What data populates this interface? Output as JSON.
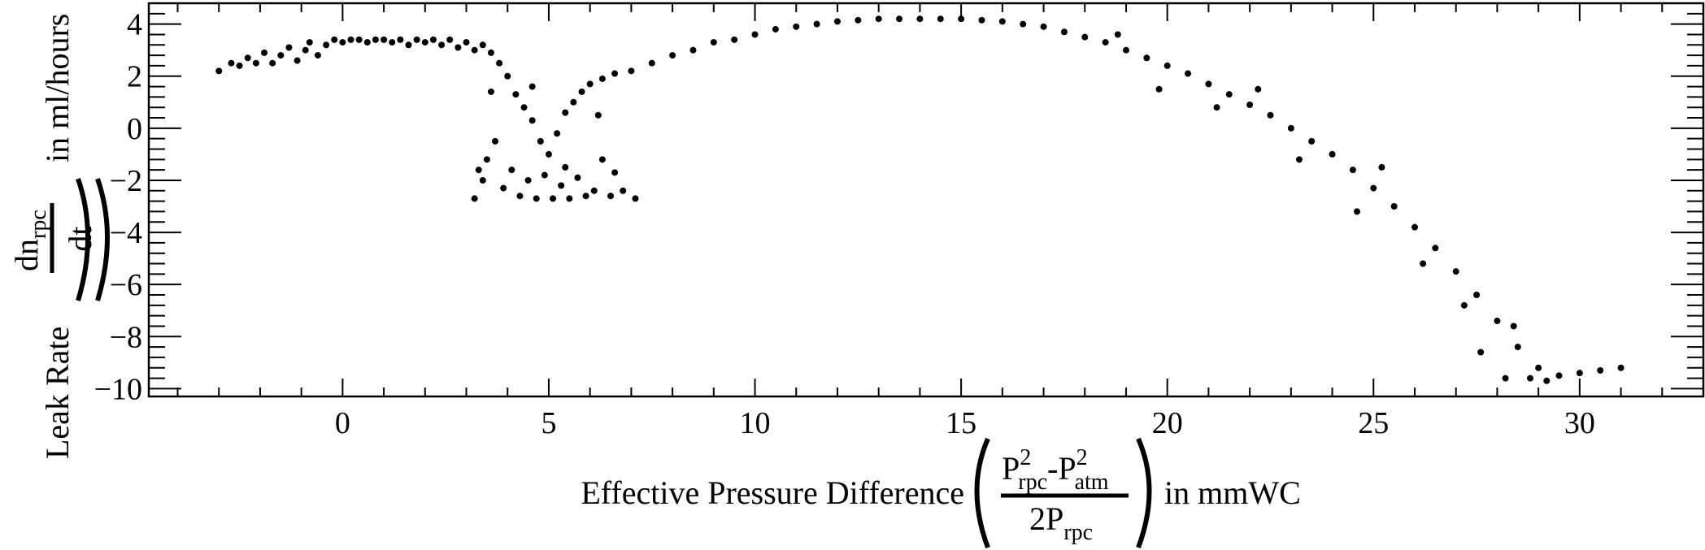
{
  "chart_data": {
    "type": "scatter",
    "title": "",
    "xlabel": {
      "prefix": "Effective Pressure Difference",
      "numerator": {
        "p1": "P",
        "p1_sup": "2",
        "p1_sub": "rpc",
        "minus": "-",
        "p2": "P",
        "p2_sup": "2",
        "p2_sub": "atm"
      },
      "denominator": {
        "coef": "2",
        "p": "P",
        "p_sub": "rpc"
      },
      "suffix": "in mmWC"
    },
    "ylabel": {
      "prefix": "Leak Rate",
      "numerator": {
        "d": "dn",
        "sub": "rpc"
      },
      "denominator": "dt",
      "suffix": "in ml/hours"
    },
    "xlim": [
      -4.7,
      33.0
    ],
    "ylim": [
      -10.3,
      4.8
    ],
    "x_ticks": [
      0,
      5,
      10,
      15,
      20,
      25,
      30
    ],
    "x_tick_labels": [
      "0",
      "5",
      "10",
      "15",
      "20",
      "25",
      "30"
    ],
    "y_ticks": [
      -10,
      -8,
      -6,
      -4,
      -2,
      0,
      2,
      4
    ],
    "y_tick_labels": [
      "−10",
      "−8",
      "−6",
      "−4",
      "−2",
      "0",
      "2",
      "4"
    ],
    "grid": false,
    "legend": "none",
    "marker_color": "#000000",
    "series": [
      {
        "points": [
          [
            -3.0,
            2.2
          ],
          [
            -2.7,
            2.5
          ],
          [
            -2.5,
            2.4
          ],
          [
            -2.3,
            2.7
          ],
          [
            -2.1,
            2.5
          ],
          [
            -1.9,
            2.9
          ],
          [
            -1.7,
            2.5
          ],
          [
            -1.5,
            2.8
          ],
          [
            -1.3,
            3.1
          ],
          [
            -1.1,
            2.6
          ],
          [
            -0.9,
            3.0
          ],
          [
            -0.8,
            3.3
          ],
          [
            -0.6,
            2.8
          ],
          [
            -0.4,
            3.2
          ],
          [
            -0.2,
            3.4
          ],
          [
            0.0,
            3.3
          ],
          [
            0.2,
            3.4
          ],
          [
            0.4,
            3.4
          ],
          [
            0.6,
            3.3
          ],
          [
            0.8,
            3.4
          ],
          [
            1.0,
            3.4
          ],
          [
            1.2,
            3.3
          ],
          [
            1.4,
            3.4
          ],
          [
            1.6,
            3.2
          ],
          [
            1.8,
            3.4
          ],
          [
            2.0,
            3.3
          ],
          [
            2.2,
            3.4
          ],
          [
            2.4,
            3.2
          ],
          [
            2.6,
            3.4
          ],
          [
            2.8,
            3.1
          ],
          [
            3.0,
            3.3
          ],
          [
            3.2,
            3.0
          ],
          [
            3.4,
            3.2
          ],
          [
            3.6,
            2.9
          ],
          [
            3.8,
            2.5
          ],
          [
            4.0,
            2.0
          ],
          [
            4.2,
            1.3
          ],
          [
            4.4,
            0.8
          ],
          [
            4.6,
            0.3
          ],
          [
            4.8,
            -0.5
          ],
          [
            5.0,
            -1.0
          ],
          [
            5.2,
            -0.2
          ],
          [
            5.4,
            0.6
          ],
          [
            5.6,
            1.0
          ],
          [
            5.8,
            1.4
          ],
          [
            6.0,
            1.7
          ],
          [
            6.3,
            1.9
          ],
          [
            6.6,
            2.1
          ],
          [
            7.0,
            2.2
          ],
          [
            7.5,
            2.5
          ],
          [
            8.0,
            2.8
          ],
          [
            8.5,
            3.0
          ],
          [
            9.0,
            3.3
          ],
          [
            9.5,
            3.4
          ],
          [
            10.0,
            3.6
          ],
          [
            10.5,
            3.8
          ],
          [
            11.0,
            3.9
          ],
          [
            11.5,
            4.0
          ],
          [
            12.0,
            4.1
          ],
          [
            12.5,
            4.15
          ],
          [
            13.0,
            4.2
          ],
          [
            13.5,
            4.2
          ],
          [
            14.0,
            4.2
          ],
          [
            14.5,
            4.2
          ],
          [
            15.0,
            4.2
          ],
          [
            15.5,
            4.15
          ],
          [
            16.0,
            4.1
          ],
          [
            16.5,
            4.0
          ],
          [
            17.0,
            3.9
          ],
          [
            17.5,
            3.7
          ],
          [
            18.0,
            3.5
          ],
          [
            18.5,
            3.3
          ],
          [
            19.0,
            3.0
          ],
          [
            19.5,
            2.7
          ],
          [
            20.0,
            2.4
          ],
          [
            20.5,
            2.1
          ],
          [
            21.0,
            1.7
          ],
          [
            21.5,
            1.3
          ],
          [
            22.0,
            0.9
          ],
          [
            22.5,
            0.5
          ],
          [
            23.0,
            0.0
          ],
          [
            23.5,
            -0.5
          ],
          [
            24.0,
            -1.0
          ],
          [
            24.5,
            -1.6
          ],
          [
            25.0,
            -2.3
          ],
          [
            25.5,
            -3.0
          ],
          [
            26.0,
            -3.8
          ],
          [
            26.5,
            -4.6
          ],
          [
            27.0,
            -5.5
          ],
          [
            27.5,
            -6.4
          ],
          [
            28.0,
            -7.4
          ],
          [
            28.5,
            -8.4
          ],
          [
            29.0,
            -9.2
          ],
          [
            29.5,
            -9.5
          ],
          [
            30.0,
            -9.4
          ],
          [
            30.5,
            -9.3
          ],
          [
            31.0,
            -9.2
          ],
          [
            3.2,
            -2.7
          ],
          [
            3.4,
            -2.0
          ],
          [
            3.5,
            -1.2
          ],
          [
            3.7,
            -0.5
          ],
          [
            3.9,
            -2.3
          ],
          [
            4.1,
            -1.6
          ],
          [
            4.3,
            -2.6
          ],
          [
            4.5,
            -2.0
          ],
          [
            4.7,
            -2.7
          ],
          [
            4.9,
            -1.8
          ],
          [
            5.1,
            -2.7
          ],
          [
            5.3,
            -2.2
          ],
          [
            5.5,
            -2.7
          ],
          [
            5.7,
            -1.9
          ],
          [
            5.9,
            -2.6
          ],
          [
            6.1,
            -2.4
          ],
          [
            6.3,
            -1.2
          ],
          [
            6.5,
            -2.6
          ],
          [
            6.8,
            -2.4
          ],
          [
            7.1,
            -2.7
          ],
          [
            3.6,
            1.4
          ],
          [
            6.2,
            0.5
          ],
          [
            4.6,
            1.6
          ],
          [
            5.4,
            -1.5
          ],
          [
            3.3,
            -1.6
          ],
          [
            6.6,
            -1.7
          ],
          [
            28.2,
            -9.6
          ],
          [
            28.8,
            -9.6
          ],
          [
            29.2,
            -9.7
          ],
          [
            27.6,
            -8.6
          ],
          [
            28.4,
            -7.6
          ],
          [
            26.2,
            -5.2
          ],
          [
            27.2,
            -6.8
          ],
          [
            25.2,
            -1.5
          ],
          [
            24.6,
            -3.2
          ],
          [
            23.2,
            -1.2
          ],
          [
            22.2,
            1.5
          ],
          [
            21.2,
            0.8
          ],
          [
            19.8,
            1.5
          ],
          [
            18.8,
            3.6
          ]
        ]
      }
    ]
  }
}
